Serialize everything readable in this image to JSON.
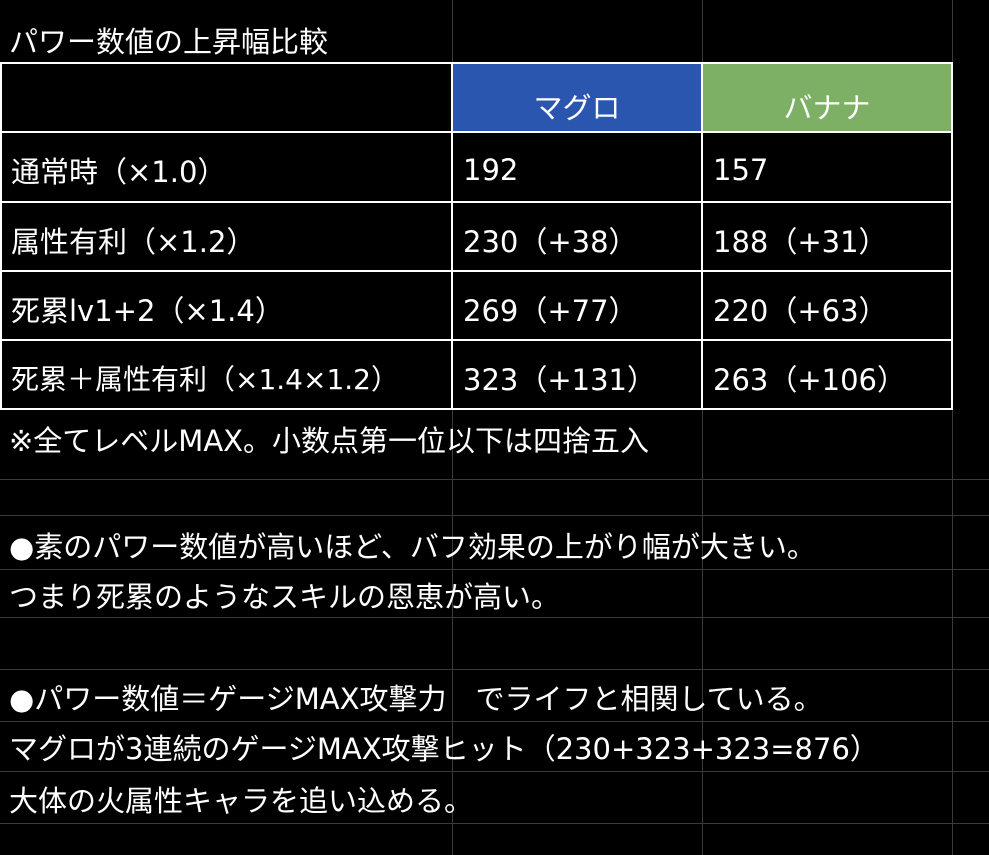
{
  "title": "パワー数値の上昇幅比較",
  "table": {
    "columns": [
      {
        "label": "マグロ",
        "color": "#2b56b0"
      },
      {
        "label": "バナナ",
        "color": "#7db065"
      }
    ],
    "rows": [
      {
        "label": "通常時（×1.0）",
        "tuna": "192",
        "banana": "157"
      },
      {
        "label": "属性有利（×1.2）",
        "tuna": "230（+38）",
        "banana": "188（+31）"
      },
      {
        "label": "死累lv1+2（×1.4）",
        "tuna": "269（+77）",
        "banana": "220（+63）"
      },
      {
        "label": "死累＋属性有利（×1.4×1.2）",
        "tuna": "323（+131）",
        "banana": "263（+106）"
      }
    ]
  },
  "notes": [
    "※全てレベルMAX。小数点第一位以下は四捨五入",
    "●素のパワー数値が高いほど、バフ効果の上がり幅が大きい。",
    "つまり死累のようなスキルの恩恵が高い。",
    "●パワー数値＝ゲージMAX攻撃力　でライフと相関している。",
    "マグロが3連続のゲージMAX攻撃ヒット（230+323+323=876）",
    "大体の火属性キャラを追い込める。"
  ]
}
